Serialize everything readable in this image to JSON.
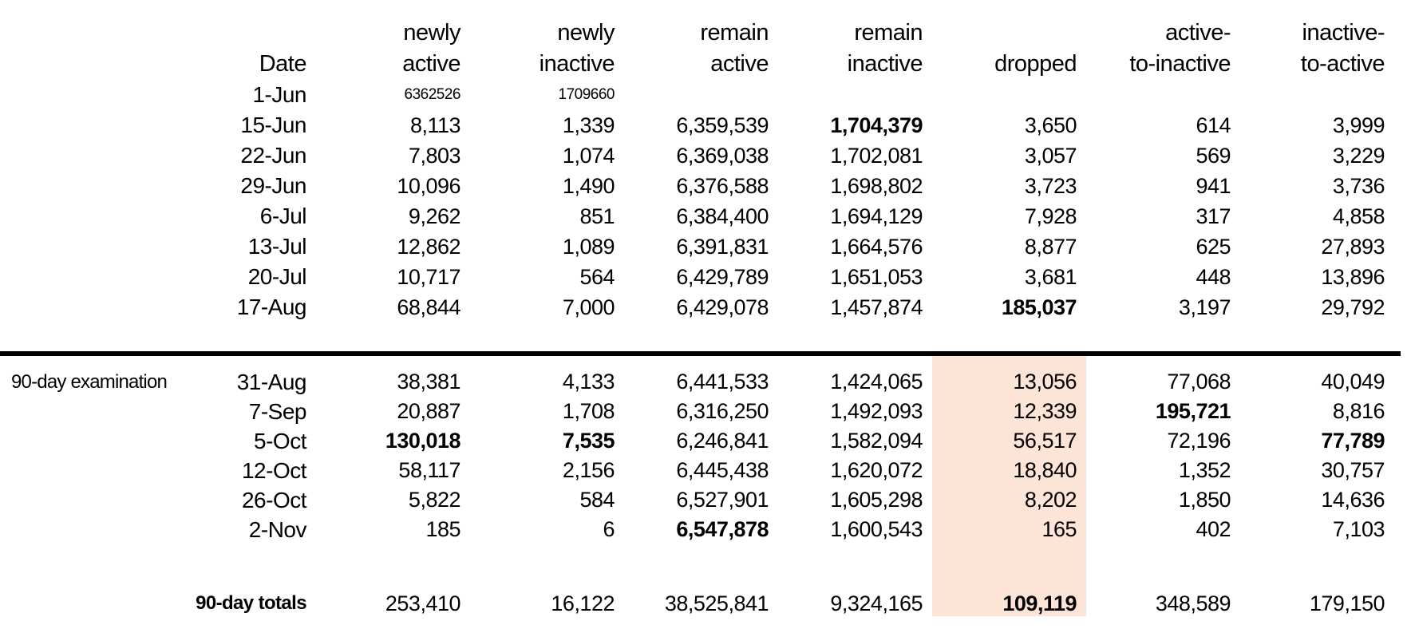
{
  "table": {
    "headers": {
      "date": "Date",
      "columns": [
        {
          "key": "newly-active",
          "top": "newly",
          "bottom": "active"
        },
        {
          "key": "newly-inactive",
          "top": "newly",
          "bottom": "inactive"
        },
        {
          "key": "remain-active",
          "top": "remain",
          "bottom": "active"
        },
        {
          "key": "remain-inactive",
          "top": "remain",
          "bottom": "inactive"
        },
        {
          "key": "dropped",
          "top": "",
          "bottom": "dropped"
        },
        {
          "key": "active-to-inactive",
          "top": "active-",
          "bottom": "to-inactive"
        },
        {
          "key": "inactive-to-active",
          "top": "inactive-",
          "bottom": "to-active"
        }
      ]
    },
    "initial_row": {
      "date": "1-Jun",
      "values": [
        "6362526",
        "1709660",
        "",
        "",
        "",
        "",
        ""
      ],
      "bold_cols": []
    },
    "pre_exam_rows": [
      {
        "date": "15-Jun",
        "values": [
          "8,113",
          "1,339",
          "6,359,539",
          "1,704,379",
          "3,650",
          "614",
          "3,999"
        ],
        "bold_cols": [
          3
        ]
      },
      {
        "date": "22-Jun",
        "values": [
          "7,803",
          "1,074",
          "6,369,038",
          "1,702,081",
          "3,057",
          "569",
          "3,229"
        ],
        "bold_cols": []
      },
      {
        "date": "29-Jun",
        "values": [
          "10,096",
          "1,490",
          "6,376,588",
          "1,698,802",
          "3,723",
          "941",
          "3,736"
        ],
        "bold_cols": []
      },
      {
        "date": "6-Jul",
        "values": [
          "9,262",
          "851",
          "6,384,400",
          "1,694,129",
          "7,928",
          "317",
          "4,858"
        ],
        "bold_cols": []
      },
      {
        "date": "13-Jul",
        "values": [
          "12,862",
          "1,089",
          "6,391,831",
          "1,664,576",
          "8,877",
          "625",
          "27,893"
        ],
        "bold_cols": []
      },
      {
        "date": "20-Jul",
        "values": [
          "10,717",
          "564",
          "6,429,789",
          "1,651,053",
          "3,681",
          "448",
          "13,896"
        ],
        "bold_cols": []
      },
      {
        "date": "17-Aug",
        "values": [
          "68,844",
          "7,000",
          "6,429,078",
          "1,457,874",
          "185,037",
          "3,197",
          "29,792"
        ],
        "bold_cols": [
          4
        ]
      }
    ],
    "exam_label": "90-day examination",
    "exam_rows": [
      {
        "date": "31-Aug",
        "values": [
          "38,381",
          "4,133",
          "6,441,533",
          "1,424,065",
          "13,056",
          "77,068",
          "40,049"
        ],
        "bold_cols": []
      },
      {
        "date": "7-Sep",
        "values": [
          "20,887",
          "1,708",
          "6,316,250",
          "1,492,093",
          "12,339",
          "195,721",
          "8,816"
        ],
        "bold_cols": [
          5
        ]
      },
      {
        "date": "5-Oct",
        "values": [
          "130,018",
          "7,535",
          "6,246,841",
          "1,582,094",
          "56,517",
          "72,196",
          "77,789"
        ],
        "bold_cols": [
          0,
          1,
          6
        ]
      },
      {
        "date": "12-Oct",
        "values": [
          "58,117",
          "2,156",
          "6,445,438",
          "1,620,072",
          "18,840",
          "1,352",
          "30,757"
        ],
        "bold_cols": []
      },
      {
        "date": "26-Oct",
        "values": [
          "5,822",
          "584",
          "6,527,901",
          "1,605,298",
          "8,202",
          "1,850",
          "14,636"
        ],
        "bold_cols": []
      },
      {
        "date": "2-Nov",
        "values": [
          "185",
          "6",
          "6,547,878",
          "1,600,543",
          "165",
          "402",
          "7,103"
        ],
        "bold_cols": [
          2
        ]
      }
    ],
    "totals_row": {
      "label": "90-day totals",
      "values": [
        "253,410",
        "16,122",
        "38,525,841",
        "9,324,165",
        "109,119",
        "348,589",
        "179,150"
      ],
      "bold_cols": [
        4
      ]
    }
  },
  "highlight": {
    "column": "dropped",
    "color": "#fce4d6"
  },
  "divider": {
    "color": "#000000"
  }
}
